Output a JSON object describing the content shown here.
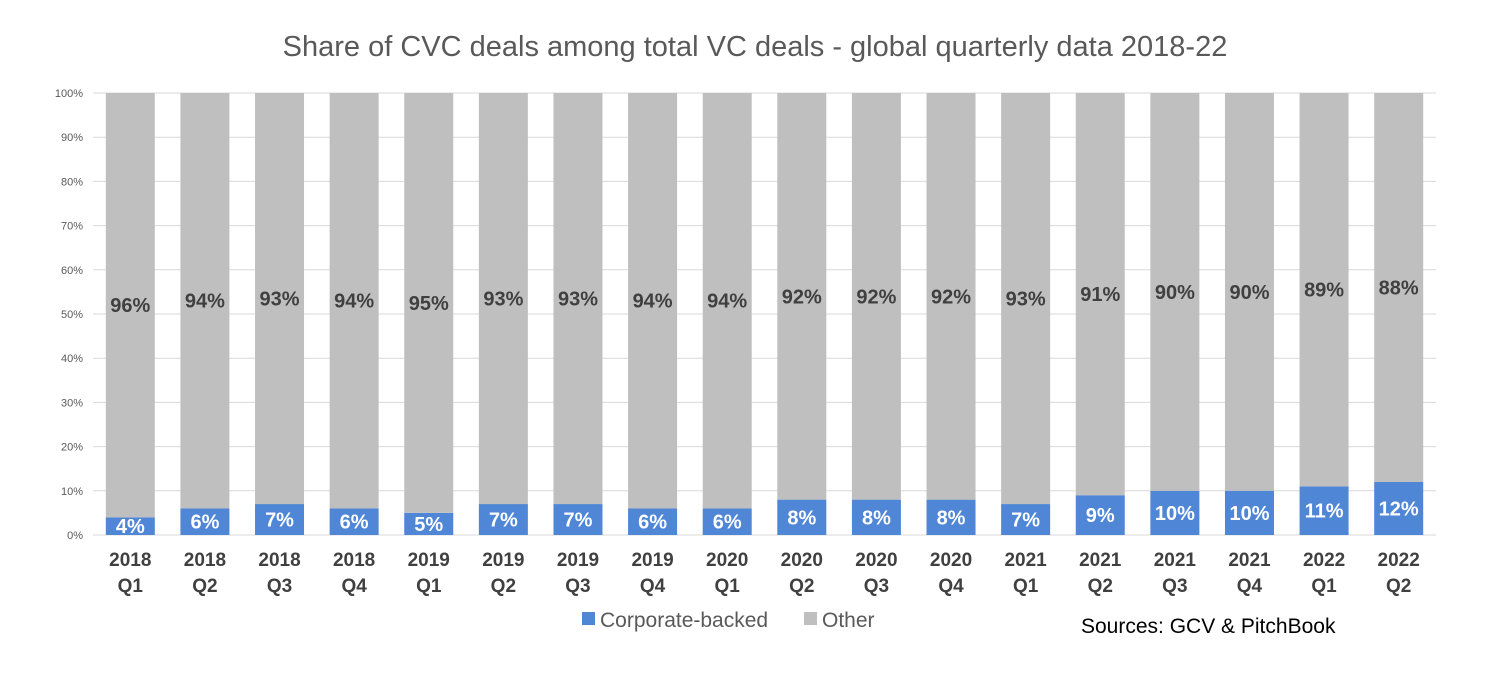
{
  "chart_data": {
    "type": "bar",
    "stacked": true,
    "title": "Share of CVC deals among total VC deals - global quarterly data  2018-22",
    "xlabel": "",
    "ylabel": "",
    "ylim": [
      0,
      100
    ],
    "yticks": [
      "0%",
      "10%",
      "20%",
      "30%",
      "40%",
      "50%",
      "60%",
      "70%",
      "80%",
      "90%",
      "100%"
    ],
    "grid": true,
    "legend_placement": "bottom",
    "categories": [
      [
        "2018",
        "Q1"
      ],
      [
        "2018",
        "Q2"
      ],
      [
        "2018",
        "Q3"
      ],
      [
        "2018",
        "Q4"
      ],
      [
        "2019",
        "Q1"
      ],
      [
        "2019",
        "Q2"
      ],
      [
        "2019",
        "Q3"
      ],
      [
        "2019",
        "Q4"
      ],
      [
        "2020",
        "Q1"
      ],
      [
        "2020",
        "Q2"
      ],
      [
        "2020",
        "Q3"
      ],
      [
        "2020",
        "Q4"
      ],
      [
        "2021",
        "Q1"
      ],
      [
        "2021",
        "Q2"
      ],
      [
        "2021",
        "Q3"
      ],
      [
        "2021",
        "Q4"
      ],
      [
        "2022",
        "Q1"
      ],
      [
        "2022",
        "Q2"
      ]
    ],
    "series": [
      {
        "name": "Corporate-backed",
        "color": "#4f86d6",
        "values": [
          4,
          6,
          7,
          6,
          5,
          7,
          7,
          6,
          6,
          8,
          8,
          8,
          7,
          9,
          10,
          10,
          11,
          12
        ],
        "labels": [
          "4%",
          "6%",
          "7%",
          "6%",
          "5%",
          "7%",
          "7%",
          "6%",
          "6%",
          "8%",
          "8%",
          "8%",
          "7%",
          "9%",
          "10%",
          "10%",
          "11%",
          "12%"
        ]
      },
      {
        "name": "Other",
        "color": "#bfbfbf",
        "values": [
          96,
          94,
          93,
          94,
          95,
          93,
          93,
          94,
          94,
          92,
          92,
          92,
          93,
          91,
          90,
          90,
          89,
          88
        ],
        "labels": [
          "96%",
          "94%",
          "93%",
          "94%",
          "95%",
          "93%",
          "93%",
          "94%",
          "94%",
          "92%",
          "92%",
          "92%",
          "93%",
          "91%",
          "90%",
          "90%",
          "89%",
          "88%"
        ]
      }
    ]
  },
  "source_note": "Sources: GCV & PitchBook"
}
